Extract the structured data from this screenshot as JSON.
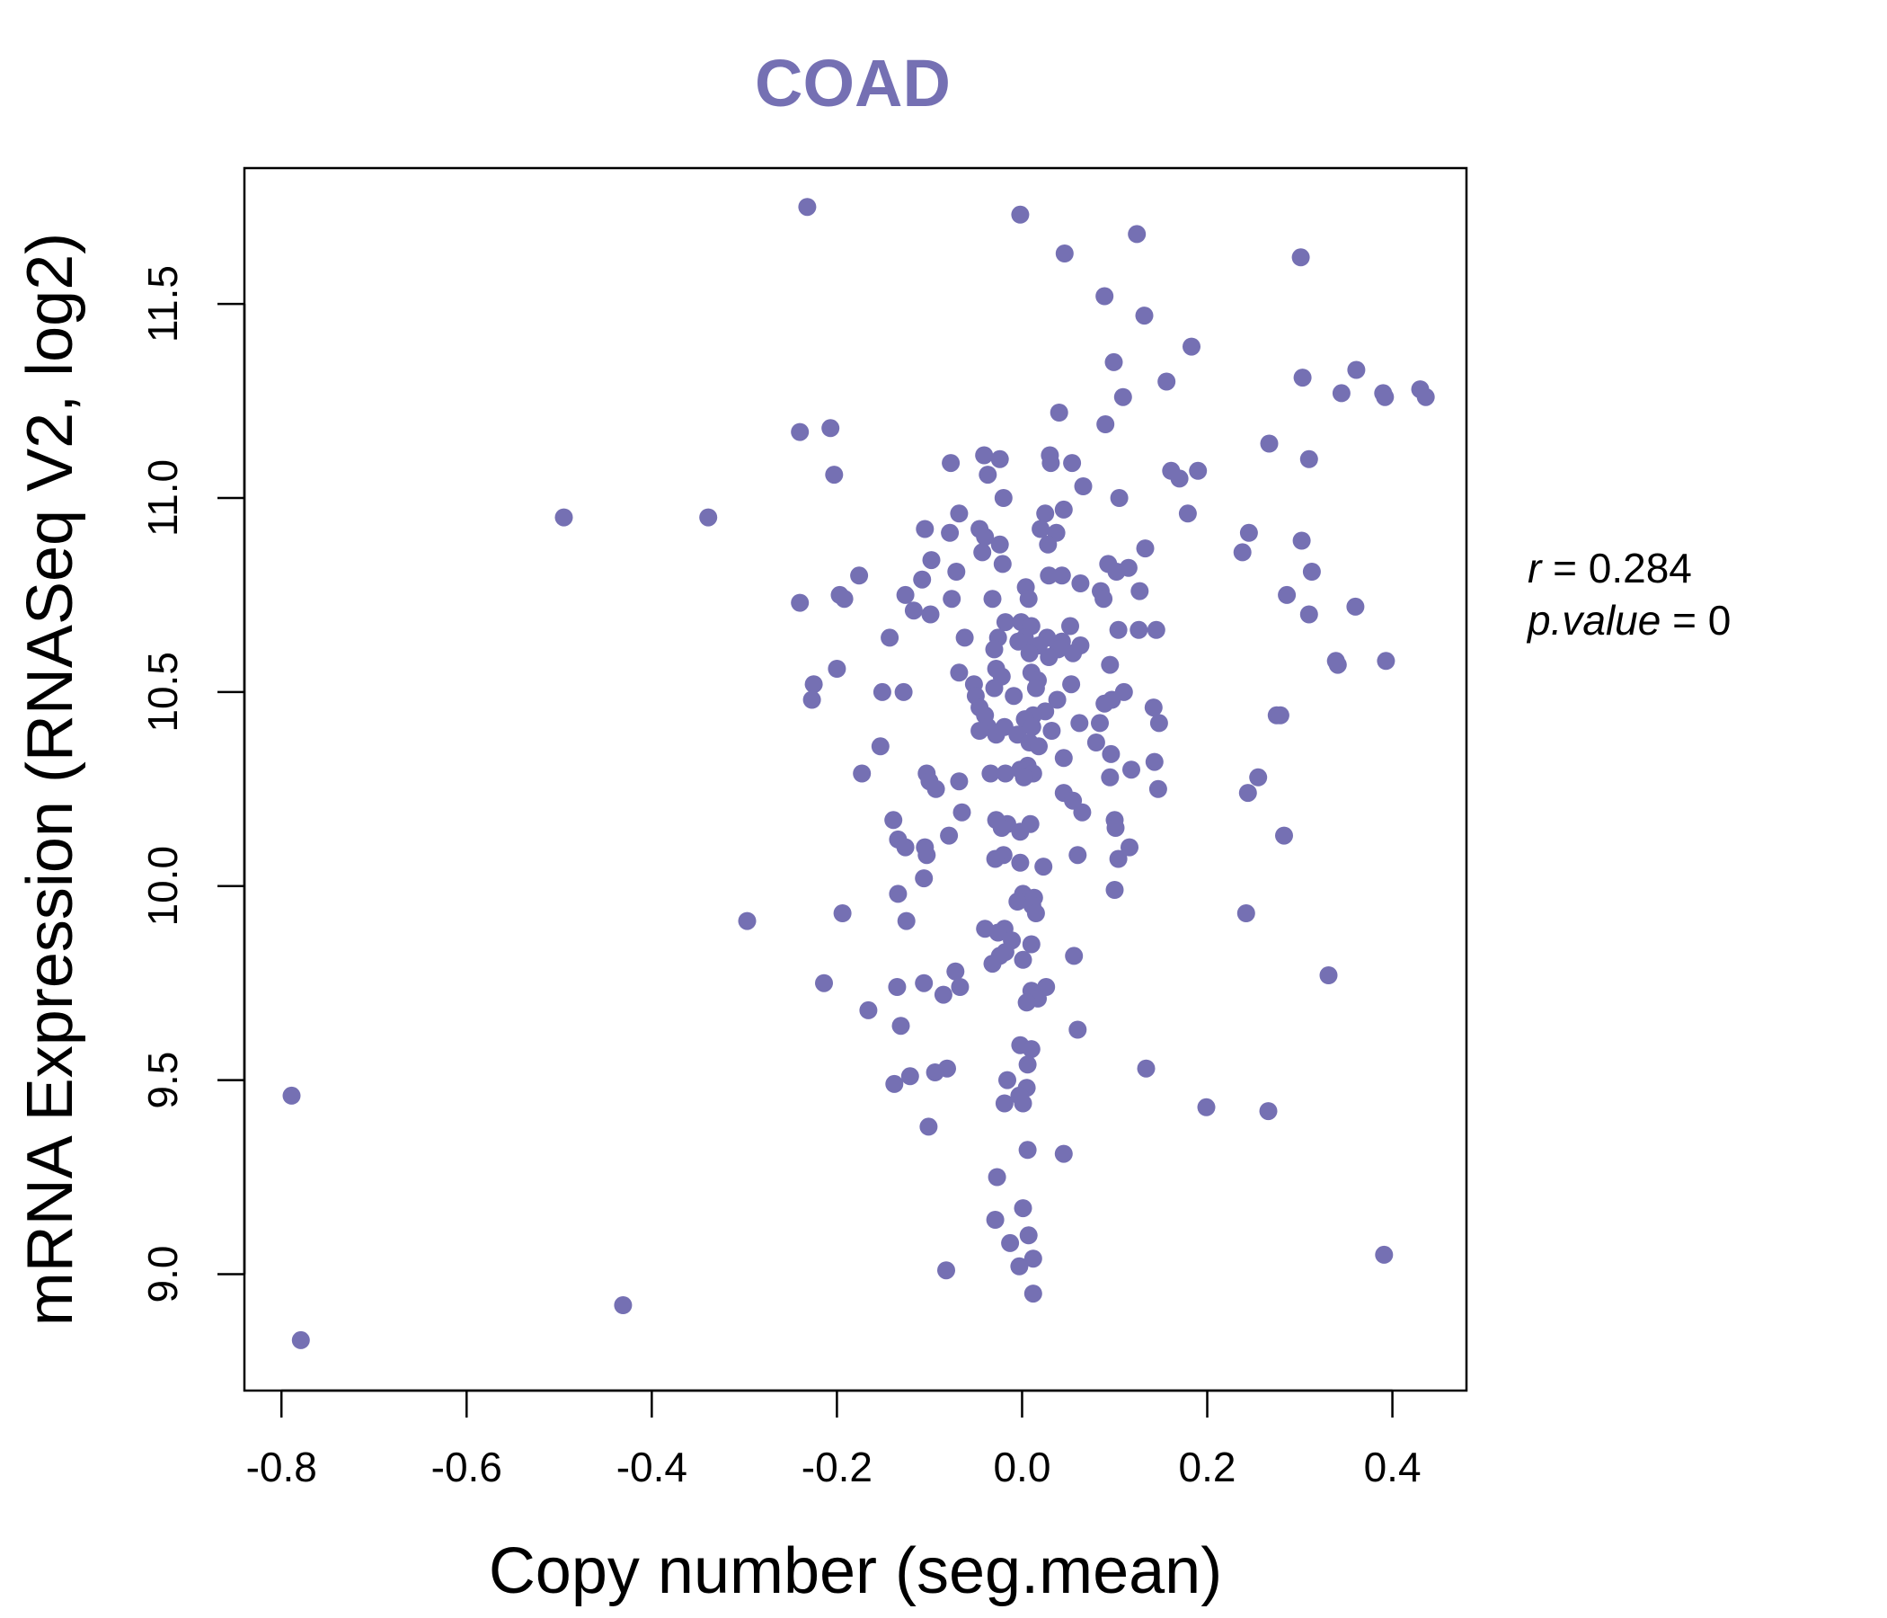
{
  "chart_data": {
    "type": "scatter",
    "title": "COAD",
    "xlabel": "Copy number (seg.mean)",
    "ylabel": "mRNA Expression (RNASeq V2, log2)",
    "xlim": [
      -0.84,
      0.48
    ],
    "ylim": [
      8.7,
      11.85
    ],
    "x_ticks": [
      -0.8,
      -0.6,
      -0.4,
      -0.2,
      0.0,
      0.2,
      0.4
    ],
    "x_tick_labels": [
      "-0.8",
      "-0.6",
      "-0.4",
      "-0.2",
      "0.0",
      "0.2",
      "0.4"
    ],
    "y_ticks": [
      9.0,
      9.5,
      10.0,
      10.5,
      11.0,
      11.5
    ],
    "y_tick_labels": [
      "9.0",
      "9.5",
      "10.0",
      "10.5",
      "11.0",
      "11.5"
    ],
    "grid": false,
    "legend": "none",
    "color": "#7570b3",
    "stats": {
      "r_label": "r",
      "r_value": "0.284",
      "p_label": "p.value",
      "p_value": "0"
    },
    "points": [
      [
        -0.232,
        11.75
      ],
      [
        -0.002,
        11.73
      ],
      [
        0.124,
        11.68
      ],
      [
        0.046,
        11.63
      ],
      [
        0.301,
        11.62
      ],
      [
        0.089,
        11.52
      ],
      [
        0.132,
        11.47
      ],
      [
        0.183,
        11.39
      ],
      [
        0.099,
        11.35
      ],
      [
        0.156,
        11.3
      ],
      [
        0.303,
        11.31
      ],
      [
        0.361,
        11.33
      ],
      [
        0.345,
        11.27
      ],
      [
        0.39,
        11.27
      ],
      [
        0.43,
        11.28
      ],
      [
        0.436,
        11.26
      ],
      [
        0.392,
        11.26
      ],
      [
        0.109,
        11.26
      ],
      [
        0.04,
        11.22
      ],
      [
        0.09,
        11.19
      ],
      [
        -0.24,
        11.17
      ],
      [
        -0.207,
        11.18
      ],
      [
        -0.203,
        11.06
      ],
      [
        0.267,
        11.14
      ],
      [
        0.31,
        11.1
      ],
      [
        0.03,
        11.11
      ],
      [
        0.031,
        11.09
      ],
      [
        0.054,
        11.09
      ],
      [
        -0.041,
        11.11
      ],
      [
        -0.077,
        11.09
      ],
      [
        -0.024,
        11.1
      ],
      [
        -0.037,
        11.06
      ],
      [
        0.161,
        11.07
      ],
      [
        0.19,
        11.07
      ],
      [
        0.17,
        11.05
      ],
      [
        0.066,
        11.03
      ],
      [
        -0.02,
        11.0
      ],
      [
        0.105,
        11.0
      ],
      [
        0.179,
        10.96
      ],
      [
        -0.495,
        10.95
      ],
      [
        -0.339,
        10.95
      ],
      [
        0.025,
        10.96
      ],
      [
        0.045,
        10.97
      ],
      [
        -0.068,
        10.96
      ],
      [
        -0.105,
        10.92
      ],
      [
        -0.078,
        10.91
      ],
      [
        -0.046,
        10.92
      ],
      [
        -0.04,
        10.9
      ],
      [
        0.02,
        10.92
      ],
      [
        0.037,
        10.91
      ],
      [
        0.245,
        10.91
      ],
      [
        0.302,
        10.89
      ],
      [
        -0.024,
        10.88
      ],
      [
        0.028,
        10.88
      ],
      [
        0.133,
        10.87
      ],
      [
        0.238,
        10.86
      ],
      [
        -0.043,
        10.86
      ],
      [
        -0.098,
        10.84
      ],
      [
        -0.021,
        10.83
      ],
      [
        0.093,
        10.83
      ],
      [
        0.115,
        10.82
      ],
      [
        0.102,
        10.81
      ],
      [
        0.313,
        10.81
      ],
      [
        -0.071,
        10.81
      ],
      [
        -0.176,
        10.8
      ],
      [
        0.029,
        10.8
      ],
      [
        0.043,
        10.8
      ],
      [
        -0.108,
        10.79
      ],
      [
        0.063,
        10.78
      ],
      [
        0.004,
        10.77
      ],
      [
        0.085,
        10.76
      ],
      [
        0.127,
        10.76
      ],
      [
        0.286,
        10.75
      ],
      [
        -0.126,
        10.75
      ],
      [
        -0.197,
        10.75
      ],
      [
        -0.192,
        10.74
      ],
      [
        -0.076,
        10.74
      ],
      [
        -0.032,
        10.74
      ],
      [
        0.007,
        10.74
      ],
      [
        0.088,
        10.74
      ],
      [
        -0.24,
        10.73
      ],
      [
        0.36,
        10.72
      ],
      [
        -0.117,
        10.71
      ],
      [
        -0.099,
        10.7
      ],
      [
        0.31,
        10.7
      ],
      [
        -0.018,
        10.68
      ],
      [
        -0.001,
        10.68
      ],
      [
        0.01,
        10.67
      ],
      [
        0.052,
        10.67
      ],
      [
        0.104,
        10.66
      ],
      [
        0.126,
        10.66
      ],
      [
        0.145,
        10.66
      ],
      [
        -0.143,
        10.64
      ],
      [
        -0.062,
        10.64
      ],
      [
        -0.026,
        10.64
      ],
      [
        0.003,
        10.64
      ],
      [
        0.027,
        10.64
      ],
      [
        0.043,
        10.63
      ],
      [
        -0.004,
        10.63
      ],
      [
        0.063,
        10.62
      ],
      [
        0.018,
        10.62
      ],
      [
        -0.03,
        10.61
      ],
      [
        0.039,
        10.61
      ],
      [
        0.055,
        10.6
      ],
      [
        0.008,
        10.6
      ],
      [
        0.029,
        10.59
      ],
      [
        0.339,
        10.58
      ],
      [
        0.393,
        10.58
      ],
      [
        0.341,
        10.57
      ],
      [
        0.095,
        10.57
      ],
      [
        -0.2,
        10.56
      ],
      [
        -0.028,
        10.56
      ],
      [
        0.01,
        10.55
      ],
      [
        -0.068,
        10.55
      ],
      [
        -0.022,
        10.54
      ],
      [
        0.017,
        10.53
      ],
      [
        -0.225,
        10.52
      ],
      [
        -0.052,
        10.52
      ],
      [
        0.053,
        10.52
      ],
      [
        -0.03,
        10.51
      ],
      [
        0.015,
        10.51
      ],
      [
        -0.128,
        10.5
      ],
      [
        -0.151,
        10.5
      ],
      [
        0.11,
        10.5
      ],
      [
        -0.05,
        10.49
      ],
      [
        -0.009,
        10.49
      ],
      [
        0.097,
        10.48
      ],
      [
        -0.227,
        10.48
      ],
      [
        0.038,
        10.48
      ],
      [
        0.089,
        10.47
      ],
      [
        -0.046,
        10.46
      ],
      [
        0.142,
        10.46
      ],
      [
        0.025,
        10.45
      ],
      [
        -0.04,
        10.44
      ],
      [
        0.012,
        10.44
      ],
      [
        0.275,
        10.44
      ],
      [
        0.279,
        10.44
      ],
      [
        0.003,
        10.43
      ],
      [
        0.062,
        10.42
      ],
      [
        0.084,
        10.42
      ],
      [
        0.148,
        10.42
      ],
      [
        -0.037,
        10.41
      ],
      [
        -0.019,
        10.41
      ],
      [
        0.011,
        10.41
      ],
      [
        0.032,
        10.4
      ],
      [
        -0.046,
        10.4
      ],
      [
        -0.028,
        10.39
      ],
      [
        -0.005,
        10.39
      ],
      [
        0.008,
        10.37
      ],
      [
        0.08,
        10.37
      ],
      [
        -0.153,
        10.36
      ],
      [
        0.018,
        10.36
      ],
      [
        0.096,
        10.34
      ],
      [
        0.045,
        10.33
      ],
      [
        0.143,
        10.32
      ],
      [
        0.006,
        10.31
      ],
      [
        -0.002,
        10.3
      ],
      [
        0.118,
        10.3
      ],
      [
        -0.173,
        10.29
      ],
      [
        -0.034,
        10.29
      ],
      [
        -0.018,
        10.29
      ],
      [
        0.012,
        10.29
      ],
      [
        -0.103,
        10.29
      ],
      [
        0.255,
        10.28
      ],
      [
        0.095,
        10.28
      ],
      [
        0.002,
        10.28
      ],
      [
        -0.068,
        10.27
      ],
      [
        -0.1,
        10.27
      ],
      [
        -0.093,
        10.25
      ],
      [
        0.147,
        10.25
      ],
      [
        0.244,
        10.24
      ],
      [
        0.045,
        10.24
      ],
      [
        0.055,
        10.22
      ],
      [
        -0.065,
        10.19
      ],
      [
        0.065,
        10.19
      ],
      [
        -0.139,
        10.17
      ],
      [
        0.1,
        10.17
      ],
      [
        -0.028,
        10.17
      ],
      [
        -0.016,
        10.16
      ],
      [
        0.009,
        10.16
      ],
      [
        0.101,
        10.15
      ],
      [
        -0.022,
        10.15
      ],
      [
        -0.002,
        10.14
      ],
      [
        -0.079,
        10.13
      ],
      [
        0.283,
        10.13
      ],
      [
        -0.134,
        10.12
      ],
      [
        -0.126,
        10.1
      ],
      [
        -0.105,
        10.1
      ],
      [
        0.116,
        10.1
      ],
      [
        -0.103,
        10.08
      ],
      [
        0.06,
        10.08
      ],
      [
        -0.02,
        10.08
      ],
      [
        0.104,
        10.07
      ],
      [
        -0.029,
        10.07
      ],
      [
        -0.002,
        10.06
      ],
      [
        0.023,
        10.05
      ],
      [
        -0.106,
        10.02
      ],
      [
        -0.134,
        9.98
      ],
      [
        0.1,
        9.99
      ],
      [
        0.001,
        9.98
      ],
      [
        0.013,
        9.97
      ],
      [
        -0.005,
        9.96
      ],
      [
        0.011,
        9.95
      ],
      [
        -0.194,
        9.93
      ],
      [
        0.015,
        9.93
      ],
      [
        0.242,
        9.93
      ],
      [
        -0.125,
        9.91
      ],
      [
        -0.297,
        9.91
      ],
      [
        -0.019,
        9.89
      ],
      [
        -0.04,
        9.89
      ],
      [
        -0.026,
        9.88
      ],
      [
        -0.011,
        9.86
      ],
      [
        0.01,
        9.85
      ],
      [
        -0.018,
        9.83
      ],
      [
        -0.024,
        9.82
      ],
      [
        0.056,
        9.82
      ],
      [
        -0.032,
        9.8
      ],
      [
        0.001,
        9.81
      ],
      [
        -0.072,
        9.78
      ],
      [
        0.331,
        9.77
      ],
      [
        -0.214,
        9.75
      ],
      [
        -0.106,
        9.75
      ],
      [
        -0.067,
        9.74
      ],
      [
        -0.135,
        9.74
      ],
      [
        0.026,
        9.74
      ],
      [
        0.01,
        9.73
      ],
      [
        -0.085,
        9.72
      ],
      [
        0.017,
        9.71
      ],
      [
        0.005,
        9.7
      ],
      [
        -0.166,
        9.68
      ],
      [
        -0.131,
        9.64
      ],
      [
        0.06,
        9.63
      ],
      [
        -0.002,
        9.59
      ],
      [
        0.01,
        9.58
      ],
      [
        0.006,
        9.54
      ],
      [
        0.134,
        9.53
      ],
      [
        -0.081,
        9.53
      ],
      [
        -0.094,
        9.52
      ],
      [
        -0.121,
        9.51
      ],
      [
        -0.016,
        9.5
      ],
      [
        -0.138,
        9.49
      ],
      [
        0.005,
        9.48
      ],
      [
        -0.003,
        9.46
      ],
      [
        -0.789,
        9.46
      ],
      [
        0.001,
        9.44
      ],
      [
        -0.019,
        9.44
      ],
      [
        0.199,
        9.43
      ],
      [
        0.266,
        9.42
      ],
      [
        -0.101,
        9.38
      ],
      [
        0.006,
        9.32
      ],
      [
        0.045,
        9.31
      ],
      [
        -0.027,
        9.25
      ],
      [
        0.001,
        9.17
      ],
      [
        -0.029,
        9.14
      ],
      [
        0.007,
        9.1
      ],
      [
        -0.013,
        9.08
      ],
      [
        0.391,
        9.05
      ],
      [
        0.012,
        9.04
      ],
      [
        -0.003,
        9.02
      ],
      [
        -0.082,
        9.01
      ],
      [
        -0.431,
        8.92
      ],
      [
        0.012,
        8.95
      ],
      [
        -0.779,
        8.83
      ]
    ]
  }
}
